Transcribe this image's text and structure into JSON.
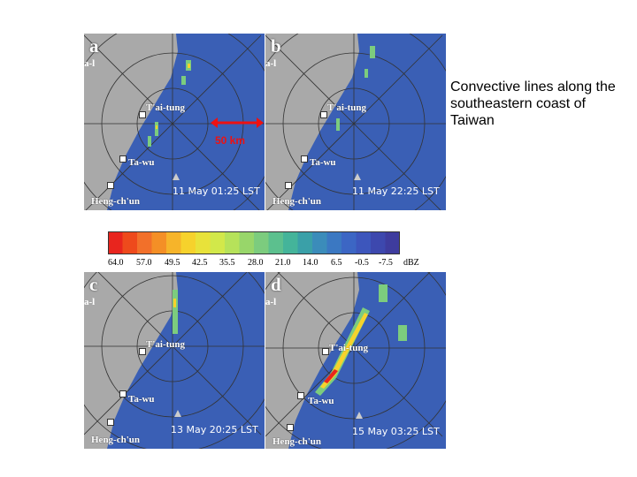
{
  "caption": "Convective lines along the southeastern coast of Taiwan",
  "scale_label": "50 km",
  "panels": [
    {
      "letter": "a",
      "tag": "a-l",
      "timestamp": "11 May 01:25 LST"
    },
    {
      "letter": "b",
      "tag": "a-l",
      "timestamp": "11 May 22:25 LST"
    },
    {
      "letter": "c",
      "tag": "a-l",
      "timestamp": "13 May 20:25 LST"
    },
    {
      "letter": "d",
      "tag": "a-l",
      "timestamp": "15 May 03:25 LST"
    }
  ],
  "cities": {
    "taitung": "T'ai-tung",
    "tawu": "Ta-wu",
    "hengchun": "Heng-ch'un"
  },
  "colorbar": {
    "ticks": [
      "64.0",
      "57.0",
      "49.5",
      "42.5",
      "35.5",
      "28.0",
      "21.0",
      "14.0",
      "6.5",
      "-0.5",
      "-7.5"
    ],
    "unit": "dBZ",
    "colors": [
      "#e8251e",
      "#ee4a1c",
      "#f2702a",
      "#f48f26",
      "#f6b42a",
      "#f6d22c",
      "#e8e23a",
      "#d2e84a",
      "#b6e25a",
      "#98d66a",
      "#7ccc7e",
      "#5cc08e",
      "#44b49a",
      "#3aa0a8",
      "#3b8cba",
      "#3b78c2",
      "#3c66c4",
      "#3d56bc",
      "#3d48ae",
      "#3e3c9e"
    ]
  }
}
